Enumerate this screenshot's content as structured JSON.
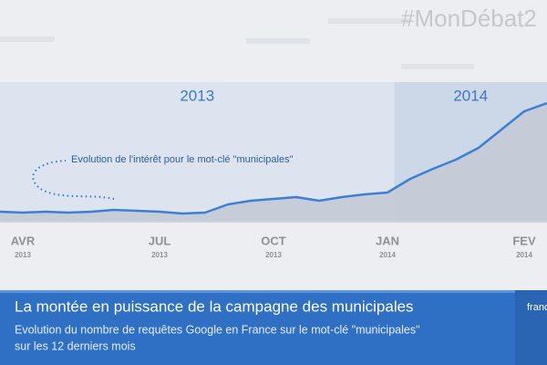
{
  "header": {
    "hashtag": "#MonDébat2"
  },
  "chart_data": {
    "type": "area",
    "periods": [
      {
        "label": "2013",
        "start": 0,
        "end": 17.3
      },
      {
        "label": "2014",
        "start": 17.3,
        "end": 24
      }
    ],
    "annotation": "Evolution de l'intérêt pour le mot-clé \"municipales\"",
    "categories": [
      null,
      {
        "month": "AVR",
        "year": "2013"
      },
      null,
      null,
      null,
      null,
      null,
      {
        "month": "JUL",
        "year": "2013"
      },
      null,
      null,
      null,
      null,
      {
        "month": "OCT",
        "year": "2013"
      },
      null,
      null,
      null,
      null,
      {
        "month": "JAN",
        "year": "2014"
      },
      null,
      null,
      null,
      null,
      null,
      {
        "month": "FEV",
        "year": "2014"
      },
      null
    ],
    "values": [
      10,
      9,
      10,
      9,
      10,
      12,
      11,
      10,
      8,
      9,
      18,
      22,
      24,
      26,
      22,
      26,
      29,
      31,
      46,
      57,
      67,
      80,
      100,
      120,
      129
    ],
    "color": "#3d7fd6",
    "fill": "#c3c9d3",
    "ylim": [
      0,
      152
    ]
  },
  "banner": {
    "title": "La montée en puissance de la campagne des municipales",
    "subtitle_lines": [
      "Evolution du nombre de requêtes Google en France sur le mot-clé \"municipales\"",
      "sur les 12 derniers mois"
    ],
    "logo": "franc"
  }
}
